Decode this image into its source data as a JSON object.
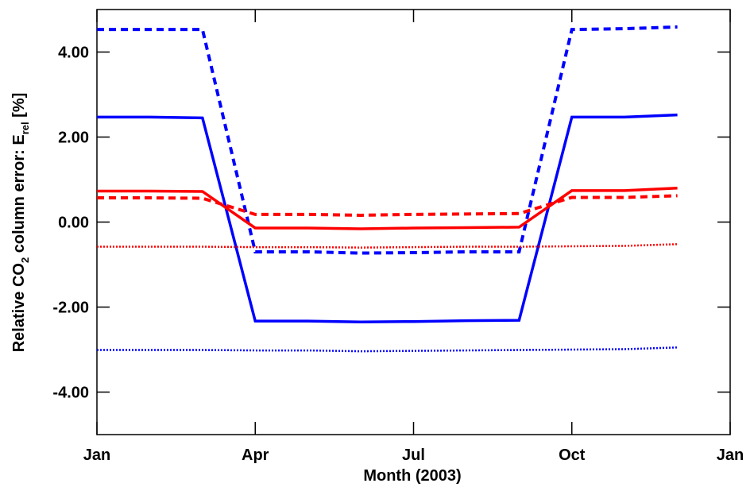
{
  "chart_data": {
    "type": "line",
    "xlabel": "Month (2003)",
    "ylabel_parts": [
      "Relative CO",
      "2",
      " column error: E",
      "rel",
      " [%]"
    ],
    "x": [
      0,
      1,
      2,
      3,
      4,
      5,
      6,
      7,
      8,
      9,
      10,
      11
    ],
    "xlim": [
      0,
      12
    ],
    "xticks": [
      {
        "value": 0,
        "label": "Jan"
      },
      {
        "value": 3,
        "label": "Apr"
      },
      {
        "value": 6,
        "label": "Jul"
      },
      {
        "value": 9,
        "label": "Oct"
      },
      {
        "value": 12,
        "label": "Jan"
      }
    ],
    "ylim": [
      -5,
      5
    ],
    "yticks": [
      {
        "value": -4,
        "label": "-4.00"
      },
      {
        "value": -2,
        "label": "-2.00"
      },
      {
        "value": 0,
        "label": "0.00"
      },
      {
        "value": 2,
        "label": "2.00"
      },
      {
        "value": 4,
        "label": "4.00"
      }
    ],
    "series": [
      {
        "color": "#0000ff",
        "dash": "dashed",
        "values": [
          4.53,
          4.53,
          4.53,
          -0.7,
          -0.7,
          -0.73,
          -0.72,
          -0.7,
          -0.7,
          4.53,
          4.55,
          4.59
        ]
      },
      {
        "color": "#0000ff",
        "dash": "solid",
        "values": [
          2.47,
          2.47,
          2.45,
          -2.33,
          -2.33,
          -2.35,
          -2.34,
          -2.32,
          -2.31,
          2.47,
          2.47,
          2.52
        ]
      },
      {
        "color": "#ff0000",
        "dash": "solid",
        "values": [
          0.73,
          0.73,
          0.72,
          -0.14,
          -0.14,
          -0.16,
          -0.14,
          -0.13,
          -0.12,
          0.74,
          0.74,
          0.8
        ]
      },
      {
        "color": "#ff0000",
        "dash": "dashed",
        "values": [
          0.57,
          0.57,
          0.56,
          0.18,
          0.18,
          0.16,
          0.18,
          0.19,
          0.2,
          0.58,
          0.58,
          0.62
        ]
      },
      {
        "color": "#ff0000",
        "dash": "dotted",
        "values": [
          -0.58,
          -0.58,
          -0.58,
          -0.59,
          -0.59,
          -0.6,
          -0.59,
          -0.58,
          -0.58,
          -0.57,
          -0.56,
          -0.52
        ]
      },
      {
        "color": "#0000ff",
        "dash": "dotted",
        "values": [
          -3.01,
          -3.01,
          -3.01,
          -3.02,
          -3.02,
          -3.04,
          -3.03,
          -3.02,
          -3.01,
          -3.0,
          -2.99,
          -2.95
        ]
      }
    ]
  }
}
